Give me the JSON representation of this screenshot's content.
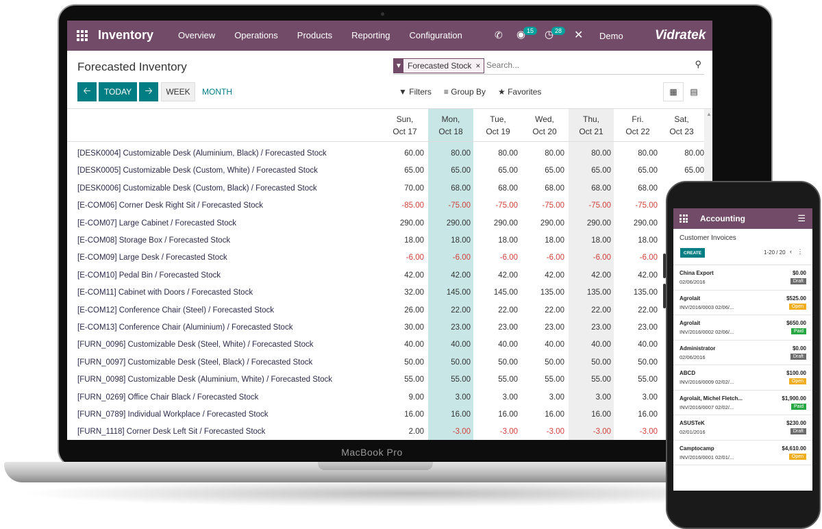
{
  "laptop": {
    "brand": "MacBook Pro"
  },
  "navbar": {
    "app_title": "Inventory",
    "menu": [
      "Overview",
      "Operations",
      "Products",
      "Reporting",
      "Configuration"
    ],
    "chat_badge": "15",
    "activity_badge": "28",
    "user": "Demo",
    "company": "Vidratek",
    "color": "#714B67"
  },
  "control_panel": {
    "title": "Forecasted Inventory",
    "facet": "Forecasted Stock",
    "search_placeholder": "Search...",
    "today": "TODAY",
    "week": "WEEK",
    "month": "MONTH",
    "filters": "Filters",
    "group_by": "Group By",
    "favorites": "Favorites",
    "accent": "#017E84"
  },
  "table": {
    "columns": [
      {
        "day": "Sun,",
        "date": "Oct 17"
      },
      {
        "day": "Mon,",
        "date": "Oct 18"
      },
      {
        "day": "Tue,",
        "date": "Oct 19"
      },
      {
        "day": "Wed,",
        "date": "Oct 20"
      },
      {
        "day": "Thu,",
        "date": "Oct 21"
      },
      {
        "day": "Fri.",
        "date": "Oct 22"
      },
      {
        "day": "Sat,",
        "date": "Oct 23"
      }
    ],
    "rows": [
      {
        "label": "[DESK0004] Customizable Desk (Aluminium, Black) / Forecasted Stock",
        "values": [
          "60.00",
          "80.00",
          "80.00",
          "80.00",
          "80.00",
          "80.00",
          "80.00"
        ]
      },
      {
        "label": "[DESK0005] Customizable Desk (Custom, White) / Forecasted Stock",
        "values": [
          "65.00",
          "65.00",
          "65.00",
          "65.00",
          "65.00",
          "65.00",
          "65.00"
        ]
      },
      {
        "label": "[DESK0006] Customizable Desk (Custom, Black) / Forecasted Stock",
        "values": [
          "70.00",
          "68.00",
          "68.00",
          "68.00",
          "68.00",
          "68.00",
          "68.00"
        ]
      },
      {
        "label": "[E-COM06] Corner Desk Right Sit / Forecasted Stock",
        "values": [
          "-85.00",
          "-75.00",
          "-75.00",
          "-75.00",
          "-75.00",
          "-75.00",
          ""
        ]
      },
      {
        "label": "[E-COM07] Large Cabinet / Forecasted Stock",
        "values": [
          "290.00",
          "290.00",
          "290.00",
          "290.00",
          "290.00",
          "290.00",
          ""
        ]
      },
      {
        "label": "[E-COM08] Storage Box / Forecasted Stock",
        "values": [
          "18.00",
          "18.00",
          "18.00",
          "18.00",
          "18.00",
          "18.00",
          ""
        ]
      },
      {
        "label": "[E-COM09] Large Desk / Forecasted Stock",
        "values": [
          "-6.00",
          "-6.00",
          "-6.00",
          "-6.00",
          "-6.00",
          "-6.00",
          ""
        ]
      },
      {
        "label": "[E-COM10] Pedal Bin / Forecasted Stock",
        "values": [
          "42.00",
          "42.00",
          "42.00",
          "42.00",
          "42.00",
          "42.00",
          ""
        ]
      },
      {
        "label": "[E-COM11] Cabinet with Doors / Forecasted Stock",
        "values": [
          "32.00",
          "145.00",
          "145.00",
          "135.00",
          "135.00",
          "135.00",
          ""
        ]
      },
      {
        "label": "[E-COM12] Conference Chair (Steel) / Forecasted Stock",
        "values": [
          "26.00",
          "22.00",
          "22.00",
          "22.00",
          "22.00",
          "22.00",
          ""
        ]
      },
      {
        "label": "[E-COM13] Conference Chair (Aluminium) / Forecasted Stock",
        "values": [
          "30.00",
          "23.00",
          "23.00",
          "23.00",
          "23.00",
          "23.00",
          ""
        ]
      },
      {
        "label": "[FURN_0096] Customizable Desk (Steel, White) / Forecasted Stock",
        "values": [
          "40.00",
          "40.00",
          "40.00",
          "40.00",
          "40.00",
          "40.00",
          ""
        ]
      },
      {
        "label": "[FURN_0097] Customizable Desk (Steel, Black) / Forecasted Stock",
        "values": [
          "50.00",
          "50.00",
          "50.00",
          "50.00",
          "50.00",
          "50.00",
          ""
        ]
      },
      {
        "label": "[FURN_0098] Customizable Desk (Aluminium, White) / Forecasted Stock",
        "values": [
          "55.00",
          "55.00",
          "55.00",
          "55.00",
          "55.00",
          "55.00",
          ""
        ]
      },
      {
        "label": "[FURN_0269] Office Chair Black / Forecasted Stock",
        "values": [
          "9.00",
          "3.00",
          "3.00",
          "3.00",
          "3.00",
          "3.00",
          ""
        ]
      },
      {
        "label": "[FURN_0789] Individual Workplace / Forecasted Stock",
        "values": [
          "16.00",
          "16.00",
          "16.00",
          "16.00",
          "16.00",
          "16.00",
          ""
        ]
      },
      {
        "label": "[FURN_1118] Corner Desk Left Sit / Forecasted Stock",
        "values": [
          "2.00",
          "-3.00",
          "-3.00",
          "-3.00",
          "-3.00",
          "-3.00",
          ""
        ]
      }
    ],
    "overflow_value": "68.00",
    "negative_color": "#d23f3a",
    "today_highlight": "#c9e6e7",
    "alt_highlight": "#eeeeee"
  },
  "phone": {
    "app_title": "Accounting",
    "breadcrumb": "Customer Invoices",
    "create": "CREATE",
    "pager": "1-20 / 20",
    "invoices": [
      {
        "name": "China Export",
        "ref": "02/06/2016",
        "amount": "$0.00",
        "status": "Draft",
        "color": "#6c6c6c"
      },
      {
        "name": "Agrolait",
        "ref": "INV/2016/0003 02/06/...",
        "amount": "$525.00",
        "status": "Open",
        "color": "#f0ad1e"
      },
      {
        "name": "Agrolait",
        "ref": "INV/2016/0002 02/06/...",
        "amount": "$650.00",
        "status": "Paid",
        "color": "#28a745"
      },
      {
        "name": "Administrator",
        "ref": "02/06/2016",
        "amount": "$0.00",
        "status": "Draft",
        "color": "#6c6c6c"
      },
      {
        "name": "ABCD",
        "ref": "INV/2016/0009 02/02/...",
        "amount": "$100.00",
        "status": "Open",
        "color": "#f0ad1e"
      },
      {
        "name": "Agrolait, Michel Fletch...",
        "ref": "INV/2016/0007 02/02/...",
        "amount": "$1,900.00",
        "status": "Paid",
        "color": "#28a745"
      },
      {
        "name": "ASUSTeK",
        "ref": "02/01/2016",
        "amount": "$230.00",
        "status": "Draft",
        "color": "#6c6c6c"
      },
      {
        "name": "Camptocamp",
        "ref": "INV/2016/0001 02/01/...",
        "amount": "$4,610.00",
        "status": "Open",
        "color": "#f0ad1e"
      }
    ]
  }
}
